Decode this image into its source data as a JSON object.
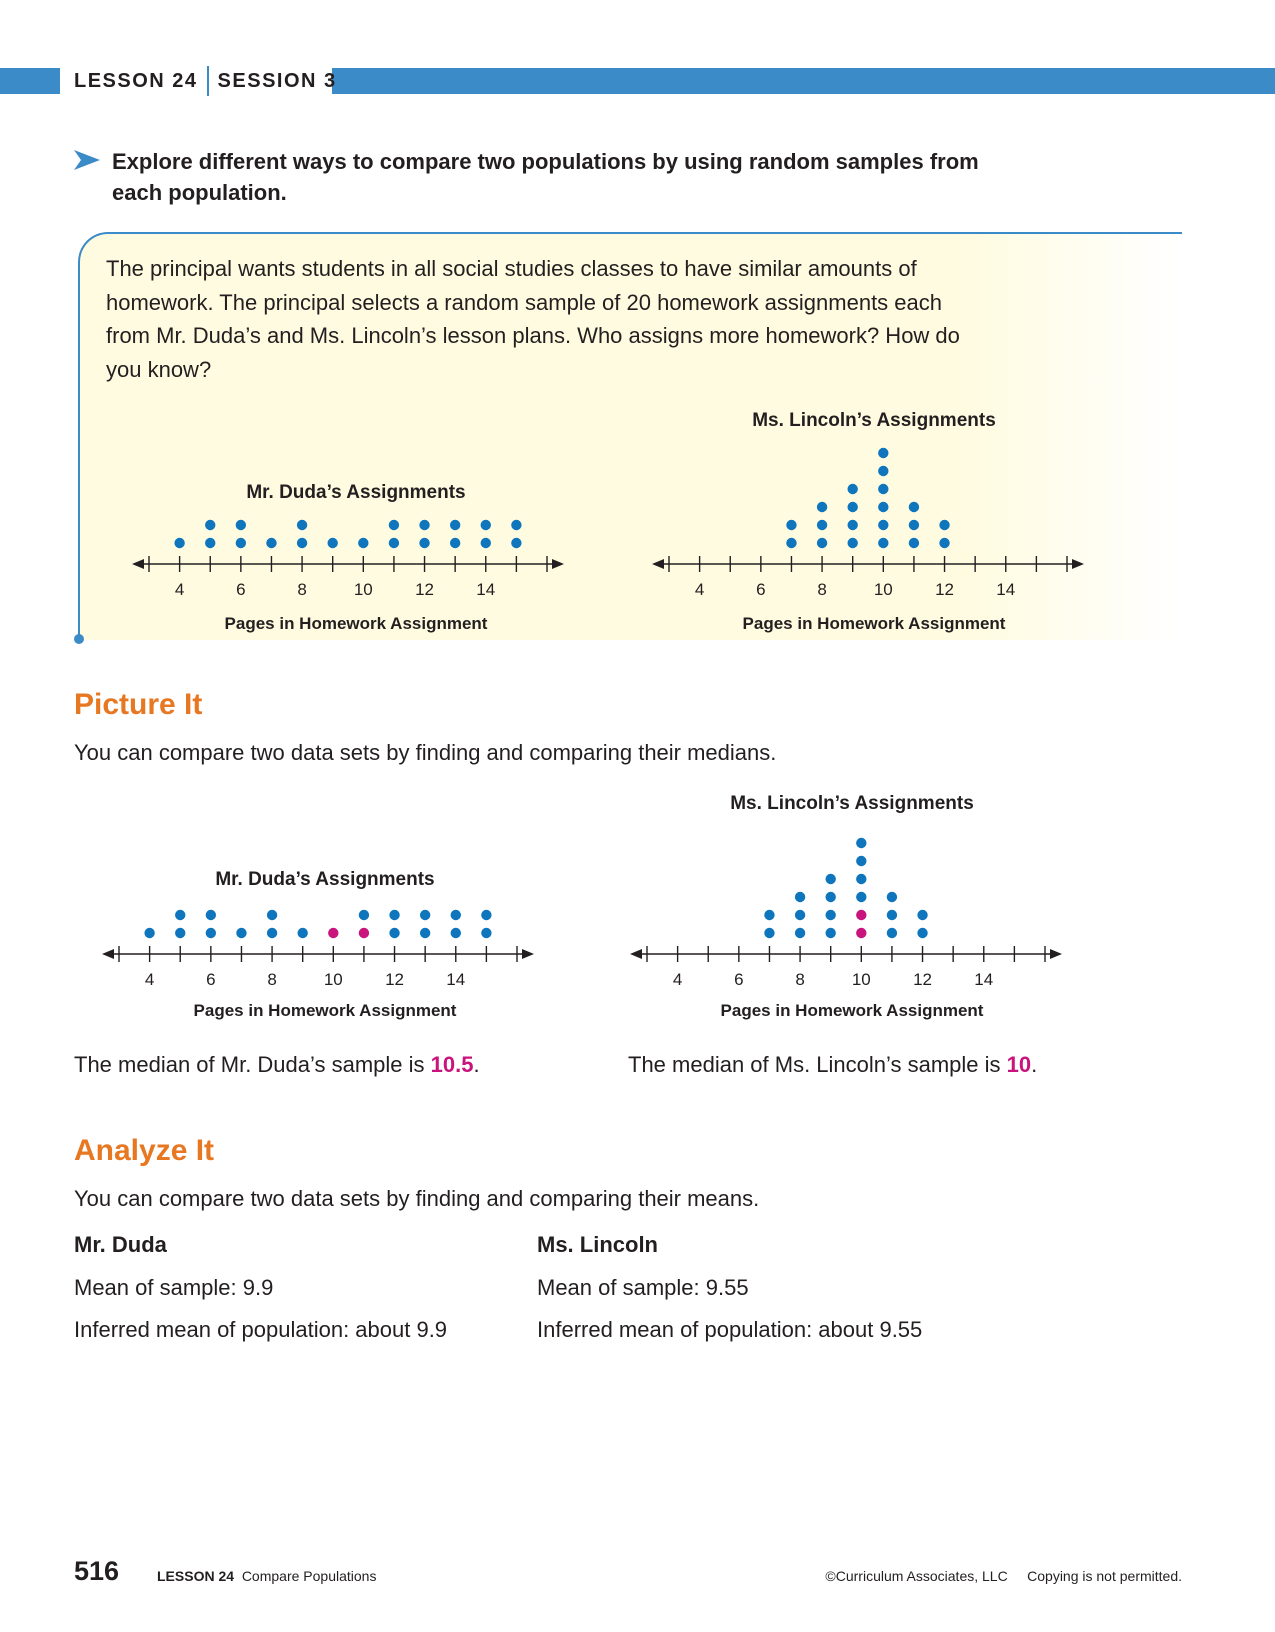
{
  "header": {
    "lesson": "LESSON 24",
    "session": "SESSION 3"
  },
  "intro": "Explore different ways to compare two populations by using random samples from each population.",
  "problem": "The principal wants students in all social studies classes to have similar amounts of homework. The principal selects a random sample of 20 homework assignments each from Mr. Duda’s and Ms. Lincoln’s lesson plans. Who assigns more homework? How do you know?",
  "picture_it": {
    "title": "Picture It",
    "text": "You can compare two data sets by finding and comparing their medians.",
    "median_duda_prefix": "The median of Mr. Duda’s sample is ",
    "median_duda_value": "10.5",
    "median_lincoln_prefix": "The median of Ms. Lincoln’s sample is ",
    "median_lincoln_value": "10",
    "period": "."
  },
  "analyze_it": {
    "title": "Analyze It",
    "text": "You can compare two data sets by finding and comparing their means.",
    "duda": {
      "name": "Mr. Duda",
      "mean": "Mean of sample: 9.9",
      "inferred": "Inferred mean of population: about 9.9"
    },
    "lincoln": {
      "name": "Ms. Lincoln",
      "mean": "Mean of sample: 9.55",
      "inferred": "Inferred mean of population: about 9.55"
    }
  },
  "footer": {
    "page": "516",
    "lesson": "LESSON 24",
    "topic": "Compare Populations",
    "copyright": "©Curriculum Associates, LLC     Copying is not permitted."
  },
  "colors": {
    "dot": "#0f75bc",
    "median_dot": "#c8147c",
    "band": "#3b8bc9",
    "section": "#e87722"
  },
  "chart_data": [
    {
      "type": "scatter",
      "title": "Mr. Duda’s Assignments",
      "xlabel": "Pages in Homework Assignment",
      "x_ticks": [
        4,
        6,
        8,
        10,
        12,
        14
      ],
      "xlim": [
        3,
        16
      ],
      "counts": {
        "4": 1,
        "5": 2,
        "6": 2,
        "7": 1,
        "8": 2,
        "9": 1,
        "10": 1,
        "11": 2,
        "12": 2,
        "13": 2,
        "14": 2,
        "15": 2
      },
      "highlight": []
    },
    {
      "type": "scatter",
      "title": "Ms. Lincoln’s Assignments",
      "xlabel": "Pages in Homework Assignment",
      "x_ticks": [
        4,
        6,
        8,
        10,
        12,
        14
      ],
      "xlim": [
        3,
        16
      ],
      "counts": {
        "7": 2,
        "8": 3,
        "9": 4,
        "10": 6,
        "11": 3,
        "12": 2
      },
      "highlight": []
    },
    {
      "type": "scatter",
      "title": "Mr. Duda’s Assignments",
      "xlabel": "Pages in Homework Assignment",
      "x_ticks": [
        4,
        6,
        8,
        10,
        12,
        14
      ],
      "xlim": [
        3,
        16
      ],
      "counts": {
        "4": 1,
        "5": 2,
        "6": 2,
        "7": 1,
        "8": 2,
        "9": 1,
        "10": 1,
        "11": 2,
        "12": 2,
        "13": 2,
        "14": 2,
        "15": 2
      },
      "highlight": [
        [
          10,
          1
        ],
        [
          11,
          1
        ]
      ]
    },
    {
      "type": "scatter",
      "title": "Ms. Lincoln’s Assignments",
      "xlabel": "Pages in Homework Assignment",
      "x_ticks": [
        4,
        6,
        8,
        10,
        12,
        14
      ],
      "xlim": [
        3,
        16
      ],
      "counts": {
        "7": 2,
        "8": 3,
        "9": 4,
        "10": 6,
        "11": 3,
        "12": 2
      },
      "highlight": [
        [
          10,
          1
        ],
        [
          10,
          2
        ]
      ]
    }
  ]
}
